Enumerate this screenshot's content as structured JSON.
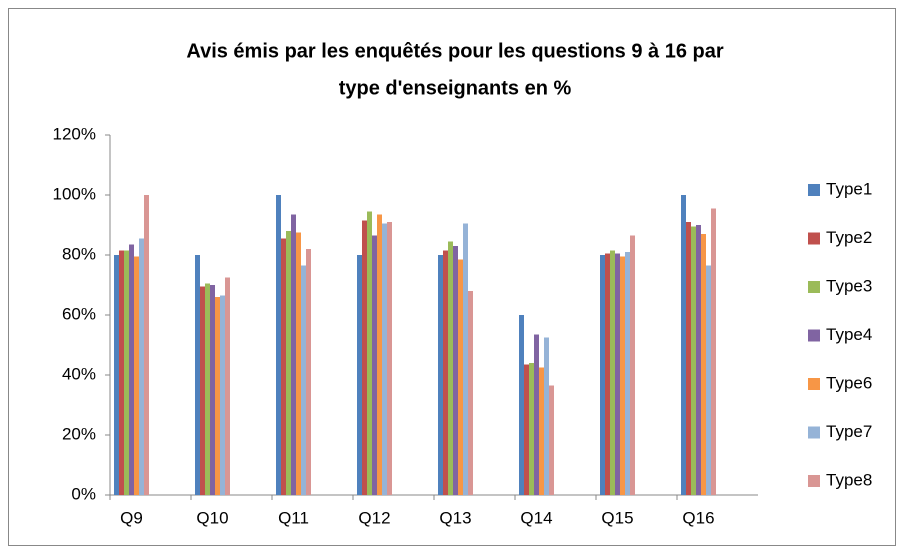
{
  "chart_data": {
    "type": "bar",
    "title": [
      "Avis émis par les enquêtés pour les questions 9 à 16 par",
      "type d'enseignants en %"
    ],
    "categories": [
      "Q9",
      "Q10",
      "Q11",
      "Q12",
      "Q13",
      "Q14",
      "Q15",
      "Q16"
    ],
    "series": [
      {
        "name": "Type1",
        "color": "#4f81bd",
        "values": [
          80,
          80,
          100,
          80,
          80,
          60,
          80,
          100
        ]
      },
      {
        "name": "Type2",
        "color": "#c0504d",
        "values": [
          81.5,
          69.5,
          85.5,
          91.5,
          81.5,
          43.5,
          80.5,
          91
        ]
      },
      {
        "name": "Type3",
        "color": "#9bbb59",
        "values": [
          81.5,
          70.5,
          88,
          94.5,
          84.5,
          44,
          81.5,
          89.5
        ]
      },
      {
        "name": "Type4",
        "color": "#8064a2",
        "values": [
          83.5,
          70,
          93.5,
          86.5,
          83,
          53.5,
          80.5,
          90
        ]
      },
      {
        "name": "Type6",
        "color": "#f79646",
        "values": [
          79.5,
          66,
          87.5,
          93.5,
          78.5,
          42.5,
          79.5,
          87
        ]
      },
      {
        "name": "Type7",
        "color": "#95b3d7",
        "values": [
          85.5,
          66.5,
          76.5,
          90.5,
          90.5,
          52.5,
          81,
          76.5
        ]
      },
      {
        "name": "Type8",
        "color": "#d99694",
        "values": [
          100,
          72.5,
          82,
          91,
          68,
          36.5,
          86.5,
          95.5
        ]
      }
    ],
    "ylim": [
      0,
      120
    ],
    "yticks": [
      {
        "value": 0,
        "label": "0%"
      },
      {
        "value": 20,
        "label": "20%"
      },
      {
        "value": 40,
        "label": "40%"
      },
      {
        "value": 60,
        "label": "60%"
      },
      {
        "value": 80,
        "label": "80%"
      },
      {
        "value": 100,
        "label": "100%"
      },
      {
        "value": 120,
        "label": "120%"
      }
    ],
    "grid": false,
    "legend": "right"
  }
}
